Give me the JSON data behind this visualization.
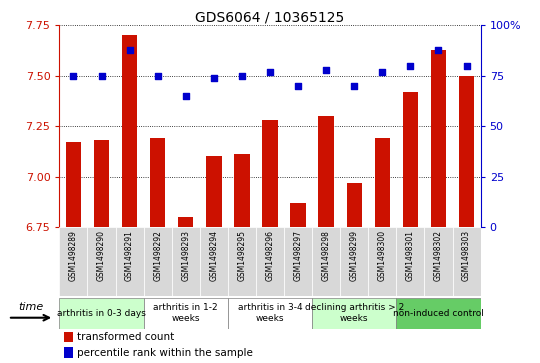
{
  "title": "GDS6064 / 10365125",
  "samples": [
    "GSM1498289",
    "GSM1498290",
    "GSM1498291",
    "GSM1498292",
    "GSM1498293",
    "GSM1498294",
    "GSM1498295",
    "GSM1498296",
    "GSM1498297",
    "GSM1498298",
    "GSM1498299",
    "GSM1498300",
    "GSM1498301",
    "GSM1498302",
    "GSM1498303"
  ],
  "transformed_count": [
    7.17,
    7.18,
    7.7,
    7.19,
    6.8,
    7.1,
    7.11,
    7.28,
    6.87,
    7.3,
    6.97,
    7.19,
    7.42,
    7.63,
    7.5
  ],
  "percentile_rank": [
    75,
    75,
    88,
    75,
    65,
    74,
    75,
    77,
    70,
    78,
    70,
    77,
    80,
    88,
    80
  ],
  "groups": [
    {
      "label": "arthritis in 0-3 days",
      "start": 0,
      "end": 3,
      "color": "#ccffcc",
      "plot_color": "#ffffff"
    },
    {
      "label": "arthritis in 1-2\nweeks",
      "start": 3,
      "end": 6,
      "color": "#ffffff",
      "plot_color": "#ffffff"
    },
    {
      "label": "arthritis in 3-4\nweeks",
      "start": 6,
      "end": 9,
      "color": "#ffffff",
      "plot_color": "#ffffff"
    },
    {
      "label": "declining arthritis > 2\nweeks",
      "start": 9,
      "end": 12,
      "color": "#ccffcc",
      "plot_color": "#ffffff"
    },
    {
      "label": "non-induced control",
      "start": 12,
      "end": 15,
      "color": "#66cc66",
      "plot_color": "#ffffff"
    }
  ],
  "ylim_left": [
    6.75,
    7.75
  ],
  "ylim_right": [
    0,
    100
  ],
  "yticks_left": [
    6.75,
    7.0,
    7.25,
    7.5,
    7.75
  ],
  "yticks_right": [
    0,
    25,
    50,
    75,
    100
  ],
  "bar_color": "#cc1100",
  "dot_color": "#0000cc",
  "background_color": "#ffffff",
  "legend_bar_label": "transformed count",
  "legend_dot_label": "percentile rank within the sample",
  "time_label": "time",
  "left_axis_color": "#cc1100",
  "right_axis_color": "#0000cc",
  "tick_label_gray": "#bbbbbb"
}
